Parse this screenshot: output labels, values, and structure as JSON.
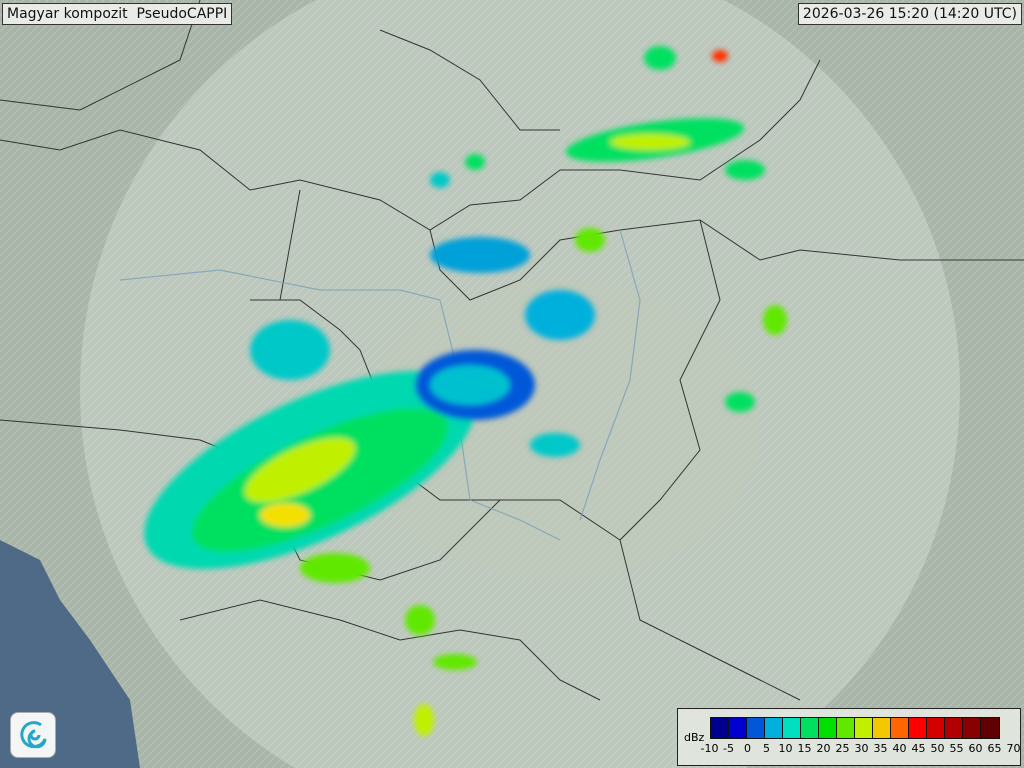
{
  "header": {
    "title": "Magyar kompozit  PseudoCAPPI",
    "timestamp": "2026-03-26 15:20 (14:20 UTC)"
  },
  "legend": {
    "unit": "dBz",
    "ticks": [
      "-10",
      "-5",
      "0",
      "5",
      "10",
      "15",
      "20",
      "25",
      "30",
      "35",
      "40",
      "45",
      "50",
      "55",
      "60",
      "65",
      "70"
    ],
    "colors": [
      "#00008f",
      "#0000d0",
      "#0058d8",
      "#00b0dc",
      "#00e0c0",
      "#00e060",
      "#00e000",
      "#60e800",
      "#c0f000",
      "#f4c800",
      "#ff6600",
      "#ff0000",
      "#d40000",
      "#b00000",
      "#880000",
      "#600000"
    ]
  },
  "logo": {
    "icon": "swirl-logo-icon"
  }
}
